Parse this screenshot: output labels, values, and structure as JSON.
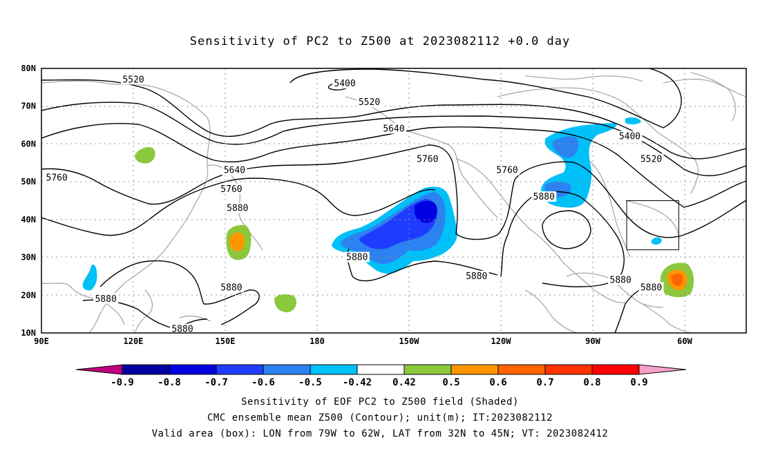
{
  "title": "Sensitivity of PC2 to Z500 at 2023082112 +0.0 day",
  "map": {
    "lat_labels": [
      "80N",
      "70N",
      "60N",
      "50N",
      "40N",
      "30N",
      "20N",
      "10N"
    ],
    "lon_labels": [
      "90E",
      "120E",
      "150E",
      "180",
      "150W",
      "120W",
      "90W",
      "60W"
    ],
    "lon_range": [
      90,
      320
    ],
    "lat_range": [
      10,
      80
    ],
    "valid_box": {
      "lon_min": -79,
      "lon_max": -62,
      "lat_min": 32,
      "lat_max": 45
    },
    "contour_labels": [
      {
        "text": "5520",
        "lon": 120,
        "lat": 77
      },
      {
        "text": "5400",
        "lon": 189,
        "lat": 76
      },
      {
        "text": "5520",
        "lon": 197,
        "lat": 71
      },
      {
        "text": "5640",
        "lon": 205,
        "lat": 64
      },
      {
        "text": "5400",
        "lon": 282,
        "lat": 62
      },
      {
        "text": "5520",
        "lon": 289,
        "lat": 56
      },
      {
        "text": "5760",
        "lon": 95,
        "lat": 51
      },
      {
        "text": "5640",
        "lon": 153,
        "lat": 53
      },
      {
        "text": "5760",
        "lon": 152,
        "lat": 48
      },
      {
        "text": "5880",
        "lon": 154,
        "lat": 43
      },
      {
        "text": "5760",
        "lon": 216,
        "lat": 56
      },
      {
        "text": "5760",
        "lon": 242,
        "lat": 53
      },
      {
        "text": "5880",
        "lon": 254,
        "lat": 46
      },
      {
        "text": "5880",
        "lon": 193,
        "lat": 30
      },
      {
        "text": "5880",
        "lon": 232,
        "lat": 25
      },
      {
        "text": "5880",
        "lon": 152,
        "lat": 22
      },
      {
        "text": "5880",
        "lon": 111,
        "lat": 19
      },
      {
        "text": "5880",
        "lon": 136,
        "lat": 11
      },
      {
        "text": "5880",
        "lon": 279,
        "lat": 24
      },
      {
        "text": "5880",
        "lon": 289,
        "lat": 22
      }
    ]
  },
  "colorbar": {
    "labels": [
      "-0.9",
      "-0.8",
      "-0.7",
      "-0.6",
      "-0.5",
      "-0.42",
      "0.42",
      "0.5",
      "0.6",
      "0.7",
      "0.8",
      "0.9"
    ],
    "colors": [
      "#c0007f",
      "#0000a0",
      "#0000e0",
      "#1e3cff",
      "#2c82f0",
      "#00c0f8",
      "#ffffff",
      "#8cc83c",
      "#ff9600",
      "#ff6400",
      "#ff3200",
      "#ff0000",
      "#f5a0c8"
    ]
  },
  "captions": {
    "line1": "Sensitivity of EOF PC2 to Z500 field (Shaded)",
    "line2": "CMC ensemble mean Z500 (Contour); unit(m); IT:2023082112",
    "line3": "Valid area (box): LON from 79W to 62W, LAT from 32N to 45N; VT: 2023082412"
  }
}
